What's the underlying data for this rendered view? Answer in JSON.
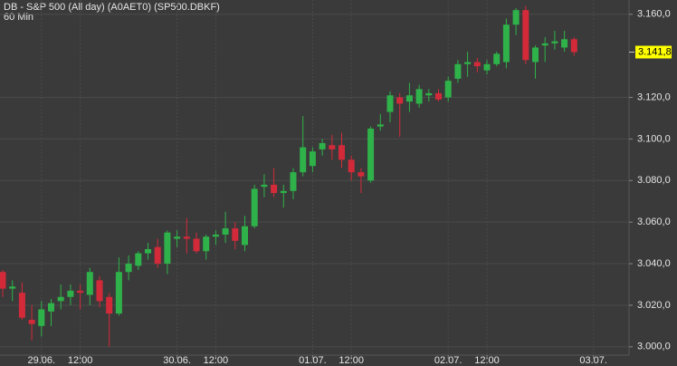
{
  "chart_data": {
    "type": "candlestick",
    "title": "DB - S&P 500 (All day) (A0AET0) (SP500.DBKF)",
    "subtitle": "60 Min",
    "categories": [
      null,
      null,
      null,
      null,
      "29.06.",
      null,
      null,
      null,
      "12:00",
      null,
      null,
      null,
      null,
      null,
      null,
      null,
      null,
      null,
      "30.06.",
      null,
      null,
      null,
      "12:00",
      null,
      null,
      null,
      null,
      null,
      null,
      null,
      null,
      null,
      "01.07.",
      null,
      null,
      null,
      "12:00",
      null,
      null,
      null,
      null,
      null,
      null,
      null,
      null,
      null,
      "02.07.",
      null,
      null,
      null,
      "12:00",
      null,
      null,
      null,
      null,
      null,
      null,
      null,
      null,
      null,
      null,
      "03.07."
    ],
    "open": [
      3036,
      3028,
      3026,
      3013,
      3010,
      3017,
      3022,
      3024,
      3027,
      3025,
      3032,
      3024,
      3016,
      3036,
      3039,
      3045,
      3048,
      3040,
      3052,
      3053,
      3052,
      3046,
      3053,
      3054,
      3057,
      3049,
      3058,
      3077,
      3078,
      3074,
      3075,
      3084,
      3087,
      3095,
      3097,
      3097,
      3090,
      3084,
      3080,
      3106,
      3113,
      3120,
      3118,
      3117,
      3121,
      3122,
      3120,
      3129,
      3136,
      3137,
      3133,
      3136,
      3137,
      3155,
      3162,
      3137,
      3145,
      3146,
      3144,
      3148,
      null,
      null
    ],
    "high": [
      3037,
      3032,
      3031,
      3020,
      3022,
      3023,
      3030,
      3030,
      3030,
      3038,
      3034,
      3026,
      3043,
      3044,
      3046,
      3050,
      3052,
      3056,
      3056,
      3062,
      3055,
      3054,
      3056,
      3065,
      3060,
      3063,
      3078,
      3083,
      3086,
      3078,
      3086,
      3111,
      3096,
      3100,
      3102,
      3103,
      3092,
      3086,
      3106,
      3112,
      3123,
      3122,
      3127,
      3126,
      3124,
      3124,
      3130,
      3138,
      3142,
      3139,
      3138,
      3142,
      3158,
      3163,
      3164,
      3145,
      3149,
      3152,
      3152,
      3149,
      null,
      null
    ],
    "low": [
      3024,
      3022,
      3013,
      3003,
      3005,
      3010,
      3018,
      3020,
      3018,
      3020,
      3019,
      3000,
      3015,
      3032,
      3037,
      3042,
      3038,
      3035,
      3048,
      3045,
      3045,
      3042,
      3049,
      3050,
      3047,
      3046,
      3057,
      3072,
      3072,
      3067,
      3071,
      3082,
      3084,
      3092,
      3090,
      3086,
      3080,
      3074,
      3079,
      3104,
      3108,
      3101,
      3113,
      3115,
      3118,
      3118,
      3118,
      3127,
      3130,
      3132,
      3131,
      3135,
      3134,
      3150,
      3136,
      3129,
      3137,
      3143,
      3142,
      3140,
      null,
      null
    ],
    "close": [
      3028,
      3029,
      3014,
      3011,
      3018,
      3021,
      3024,
      3027,
      3026,
      3036,
      3022,
      3016,
      3036,
      3040,
      3045,
      3047,
      3040,
      3055,
      3053,
      3052,
      3046,
      3053,
      3054,
      3057,
      3051,
      3058,
      3076,
      3078,
      3074,
      3075,
      3084,
      3096,
      3094,
      3098,
      3095,
      3090,
      3084,
      3082,
      3105,
      3107,
      3121,
      3117,
      3121,
      3124,
      3122,
      3119,
      3128,
      3136,
      3137,
      3135,
      3136,
      3141,
      3155,
      3162,
      3138,
      3144,
      3146,
      3147,
      3148,
      3141.8,
      null,
      null
    ],
    "up_color": "#2fb24a",
    "down_color": "#d32a3a",
    "ylim": [
      2996,
      3166
    ],
    "yticks": [
      {
        "value": 3000,
        "label": "3.000,0"
      },
      {
        "value": 3020,
        "label": "3.020,0"
      },
      {
        "value": 3040,
        "label": "3.040,0"
      },
      {
        "value": 3060,
        "label": "3.060,0"
      },
      {
        "value": 3080,
        "label": "3.080,0"
      },
      {
        "value": 3100,
        "label": "3.100,0"
      },
      {
        "value": 3120,
        "label": "3.120,0"
      },
      {
        "value": 3160,
        "label": "3.160,0"
      }
    ],
    "last_price": {
      "value": 3141.8,
      "label": "3.141,8"
    },
    "grid": true
  }
}
